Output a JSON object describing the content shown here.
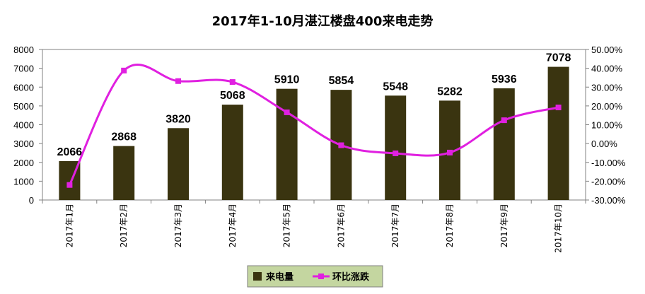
{
  "chart_data": {
    "type": "bar",
    "title": "2017年1-10月湛江楼盘400来电走势",
    "categories": [
      "2017年1月",
      "2017年2月",
      "2017年3月",
      "2017年4月",
      "2017年5月",
      "2017年6月",
      "2017年7月",
      "2017年8月",
      "2017年9月",
      "2017年10月"
    ],
    "series": [
      {
        "name": "来电量",
        "type": "bar",
        "axis": "left",
        "color": "#3a3410",
        "values": [
          2066,
          2868,
          3820,
          5068,
          5910,
          5854,
          5548,
          5282,
          5936,
          7078
        ]
      },
      {
        "name": "环比涨跌",
        "type": "line",
        "axis": "right",
        "color": "#e020e0",
        "values": [
          -22.0,
          38.8,
          33.2,
          32.7,
          16.6,
          -0.9,
          -5.2,
          -4.8,
          12.4,
          19.2
        ]
      }
    ],
    "y_left": {
      "ylim": [
        0,
        8000
      ],
      "ticks": [
        0,
        1000,
        2000,
        3000,
        4000,
        5000,
        6000,
        7000,
        8000
      ],
      "tick_labels": [
        "0",
        "1000",
        "2000",
        "3000",
        "4000",
        "5000",
        "6000",
        "7000",
        "8000"
      ]
    },
    "y_right": {
      "ylim": [
        -30,
        50
      ],
      "ticks": [
        -30,
        -20,
        -10,
        0,
        10,
        20,
        30,
        40,
        50
      ],
      "tick_labels": [
        "-30.00%",
        "-20.00%",
        "-10.00%",
        "0.00%",
        "10.00%",
        "20.00%",
        "30.00%",
        "40.00%",
        "50.00%"
      ]
    },
    "data_labels": [
      "2066",
      "2868",
      "3820",
      "5068",
      "5910",
      "5854",
      "5548",
      "5282",
      "5936",
      "7078"
    ],
    "legend": {
      "position": "bottom",
      "background": "#c4d6a0",
      "items": [
        "来电量",
        "环比涨跌"
      ]
    },
    "grid": false,
    "plot_background": "#ffffff"
  }
}
